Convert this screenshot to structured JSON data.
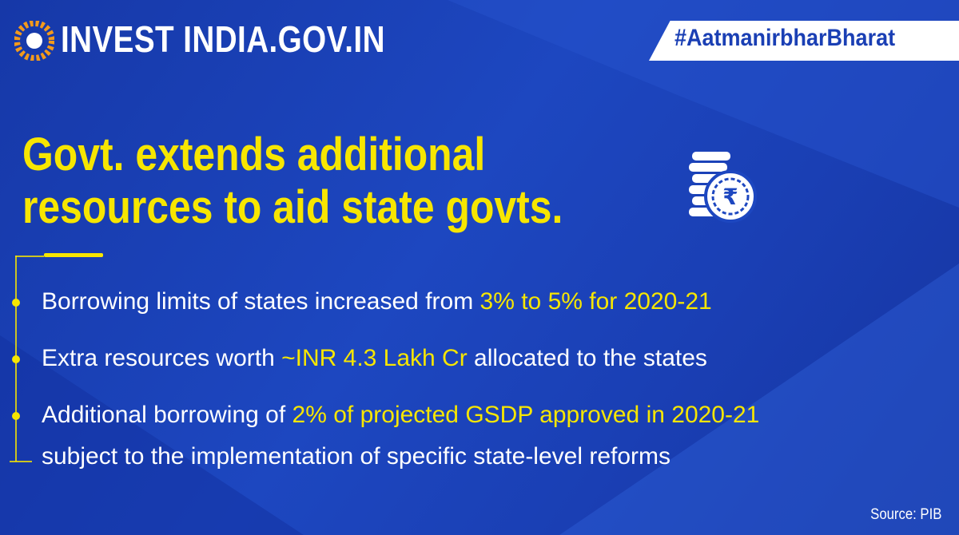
{
  "header": {
    "logo_text": "INVEST INDIA.GOV.IN",
    "hashtag": "#AatmanirbharBharat"
  },
  "title_lines": [
    "Govt. extends additional",
    "resources to aid state govts."
  ],
  "bullets": [
    {
      "lines": [
        [
          {
            "text": "Borrowing limits of states increased from ",
            "highlight": false
          },
          {
            "text": "3% to 5% for 2020-21",
            "highlight": true
          }
        ]
      ]
    },
    {
      "lines": [
        [
          {
            "text": "Extra resources worth ",
            "highlight": false
          },
          {
            "text": "~INR 4.3 Lakh Cr",
            "highlight": true
          },
          {
            "text": " allocated to the states",
            "highlight": false
          }
        ]
      ]
    },
    {
      "lines": [
        [
          {
            "text": "Additional borrowing of ",
            "highlight": false
          },
          {
            "text": "2% of projected GSDP approved in 2020-21",
            "highlight": true
          }
        ],
        [
          {
            "text": "subject to the implementation of specific state-level reforms",
            "highlight": false
          }
        ]
      ]
    }
  ],
  "source": "Source: PIB"
}
